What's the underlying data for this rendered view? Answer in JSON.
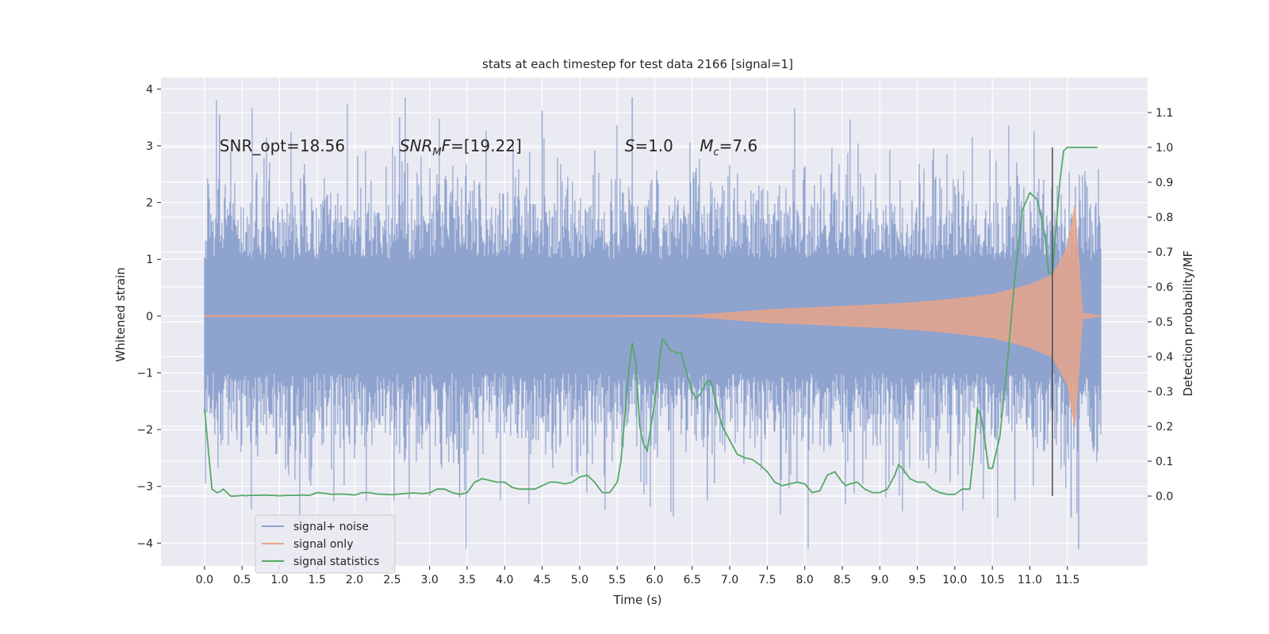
{
  "chart_data": {
    "type": "line",
    "title": "stats at each timestep for test data 2166 [signal=1]",
    "xlabel": "Time (s)",
    "ylabel": "Whitened strain",
    "ylabel_right": "Detection probability/MF",
    "xlim": [
      -0.58,
      12.57
    ],
    "ylim": [
      -4.4,
      4.2
    ],
    "ylim_right": [
      -0.2,
      1.2
    ],
    "x_ticks": [
      0.0,
      0.5,
      1.0,
      1.5,
      2.0,
      2.5,
      3.0,
      3.5,
      4.0,
      4.5,
      5.0,
      5.5,
      6.0,
      6.5,
      7.0,
      7.5,
      8.0,
      8.5,
      9.0,
      9.5,
      10.0,
      10.5,
      11.0,
      11.5
    ],
    "x_tick_labels": [
      "0.0",
      "0.5",
      "1.0",
      "1.5",
      "2.0",
      "2.5",
      "3.0",
      "3.5",
      "4.0",
      "4.5",
      "5.0",
      "5.5",
      "6.0",
      "6.5",
      "7.0",
      "7.5",
      "8.0",
      "8.5",
      "9.0",
      "9.5",
      "10.0",
      "10.5",
      "11.0",
      "11.5"
    ],
    "y_ticks": [
      4,
      3,
      2,
      1,
      0,
      -1,
      -2,
      -3,
      -4
    ],
    "y_tick_labels": [
      "4",
      "3",
      "2",
      "1",
      "0",
      "−1",
      "−2",
      "−3",
      "−4"
    ],
    "y_right_ticks": [
      1.1,
      1.0,
      0.9,
      0.8,
      0.7,
      0.6,
      0.5,
      0.4,
      0.3,
      0.2,
      0.1,
      0.0
    ],
    "y_right_tick_labels": [
      "1.1",
      "1.0",
      "0.9",
      "0.8",
      "0.7",
      "0.6",
      "0.5",
      "0.4",
      "0.3",
      "0.2",
      "0.1",
      "0.0"
    ],
    "grid": true,
    "legend_position": "lower-left",
    "colors": {
      "background": "#eaeaf2",
      "signal_noise": "#8fa3cf",
      "signal_only": "#e8a58a",
      "statistics": "#55a868",
      "vline": "#4a4a4a"
    },
    "annotations": [
      {
        "label": "SNR_opt=18.56",
        "x": 0.2,
        "y": 3.0
      },
      {
        "label": "SNR_MF=[19.22]",
        "x": 2.6,
        "y": 3.0
      },
      {
        "label": "S=1.0",
        "x": 5.6,
        "y": 3.0
      },
      {
        "label": "M_c=7.6",
        "x": 6.6,
        "y": 3.0
      }
    ],
    "vertical_line": {
      "x": 11.3,
      "y_range_right": [
        0.0,
        1.0
      ]
    },
    "series": [
      {
        "name": "signal+ noise",
        "kind": "noise",
        "x_range": [
          0.0,
          11.95
        ],
        "typical_amplitude": 1.3,
        "max_peak": 3.85,
        "min_trough": -4.1
      },
      {
        "name": "signal only",
        "kind": "chirp",
        "x_range": [
          0.0,
          11.95
        ],
        "envelope": {
          "x": [
            0.0,
            6.5,
            7.0,
            7.5,
            8.0,
            8.5,
            9.0,
            9.5,
            10.0,
            10.5,
            11.0,
            11.3,
            11.5,
            11.6,
            11.65,
            11.7,
            11.95
          ],
          "amplitude": [
            0.0,
            0.01,
            0.06,
            0.11,
            0.14,
            0.17,
            0.2,
            0.24,
            0.3,
            0.38,
            0.55,
            0.72,
            1.2,
            1.95,
            1.0,
            0.05,
            0.0
          ]
        }
      },
      {
        "name": "signal statistics",
        "kind": "line_right_axis",
        "x": [
          0.0,
          0.1,
          0.17,
          0.2,
          0.25,
          0.3,
          0.35,
          0.4,
          0.45,
          0.5,
          0.55,
          0.6,
          0.7,
          0.8,
          0.9,
          1.0,
          1.1,
          1.2,
          1.3,
          1.4,
          1.5,
          1.6,
          1.7,
          1.8,
          1.9,
          2.0,
          2.1,
          2.2,
          2.3,
          2.4,
          2.5,
          2.6,
          2.7,
          2.8,
          2.9,
          3.0,
          3.1,
          3.2,
          3.3,
          3.4,
          3.5,
          3.6,
          3.7,
          3.8,
          3.9,
          4.0,
          4.1,
          4.2,
          4.3,
          4.4,
          4.5,
          4.6,
          4.7,
          4.8,
          4.9,
          5.0,
          5.1,
          5.2,
          5.3,
          5.4,
          5.5,
          5.55,
          5.6,
          5.65,
          5.7,
          5.75,
          5.8,
          5.85,
          5.9,
          6.0,
          6.05,
          6.1,
          6.15,
          6.2,
          6.3,
          6.35,
          6.5,
          6.55,
          6.6,
          6.7,
          6.75,
          6.8,
          6.9,
          7.0,
          7.1,
          7.2,
          7.3,
          7.4,
          7.5,
          7.6,
          7.7,
          7.8,
          7.9,
          8.0,
          8.1,
          8.2,
          8.3,
          8.4,
          8.5,
          8.55,
          8.6,
          8.7,
          8.8,
          8.9,
          9.0,
          9.1,
          9.2,
          9.25,
          9.3,
          9.4,
          9.5,
          9.6,
          9.7,
          9.8,
          9.9,
          10.0,
          10.1,
          10.2,
          10.25,
          10.3,
          10.35,
          10.4,
          10.45,
          10.5,
          10.6,
          10.7,
          10.8,
          10.9,
          11.0,
          11.05,
          11.1,
          11.2,
          11.25,
          11.3,
          11.4,
          11.45,
          11.5,
          11.6,
          11.7,
          11.8,
          11.9
        ],
        "y": [
          0.25,
          0.02,
          0.01,
          0.012,
          0.02,
          0.01,
          0.0,
          0.0,
          0.001,
          0.002,
          0.001,
          0.002,
          0.002,
          0.003,
          0.002,
          0.001,
          0.002,
          0.002,
          0.003,
          0.002,
          0.01,
          0.008,
          0.005,
          0.006,
          0.005,
          0.003,
          0.01,
          0.01,
          0.006,
          0.005,
          0.004,
          0.006,
          0.008,
          0.009,
          0.007,
          0.009,
          0.02,
          0.02,
          0.01,
          0.005,
          0.01,
          0.04,
          0.05,
          0.045,
          0.04,
          0.04,
          0.025,
          0.02,
          0.02,
          0.02,
          0.03,
          0.04,
          0.04,
          0.035,
          0.04,
          0.055,
          0.06,
          0.04,
          0.01,
          0.01,
          0.04,
          0.1,
          0.22,
          0.35,
          0.44,
          0.38,
          0.2,
          0.15,
          0.13,
          0.27,
          0.36,
          0.45,
          0.44,
          0.42,
          0.41,
          0.41,
          0.3,
          0.28,
          0.29,
          0.33,
          0.33,
          0.28,
          0.2,
          0.16,
          0.12,
          0.11,
          0.105,
          0.09,
          0.07,
          0.04,
          0.03,
          0.035,
          0.04,
          0.035,
          0.01,
          0.015,
          0.06,
          0.07,
          0.04,
          0.03,
          0.035,
          0.04,
          0.02,
          0.01,
          0.01,
          0.02,
          0.06,
          0.09,
          0.08,
          0.05,
          0.04,
          0.04,
          0.02,
          0.01,
          0.005,
          0.005,
          0.02,
          0.02,
          0.12,
          0.25,
          0.23,
          0.16,
          0.08,
          0.08,
          0.17,
          0.38,
          0.63,
          0.82,
          0.87,
          0.86,
          0.85,
          0.75,
          0.64,
          0.64,
          0.9,
          0.99,
          1.0,
          1.0,
          1.0,
          1.0,
          1.0
        ]
      }
    ]
  },
  "legend": [
    {
      "label": "signal+ noise",
      "color": "#8fa3cf"
    },
    {
      "label": "signal only",
      "color": "#e8a58a"
    },
    {
      "label": "signal statistics",
      "color": "#55a868"
    }
  ]
}
